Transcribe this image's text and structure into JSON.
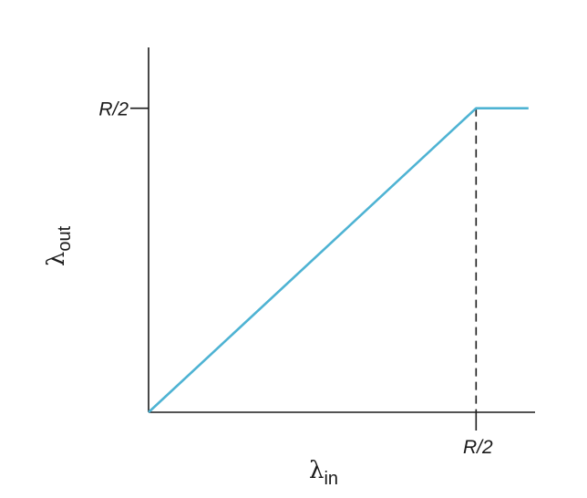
{
  "chart_data": {
    "type": "line",
    "title": "",
    "xlabel": {
      "symbol": "λ",
      "subscript": "in"
    },
    "ylabel": {
      "symbol": "λ",
      "subscript": "out"
    },
    "x_ticks": [
      {
        "value": 0.5,
        "label": "R/2"
      }
    ],
    "y_ticks": [
      {
        "value": 0.5,
        "label": "R/2"
      }
    ],
    "xlim": [
      0,
      0.59
    ],
    "ylim": [
      0,
      0.6
    ],
    "grid": false,
    "legend": "none",
    "reference_lines": [
      {
        "orientation": "vertical",
        "x": 0.5,
        "style": "dashed"
      }
    ],
    "series": [
      {
        "color": "#4eb3d3",
        "x": [
          0,
          0.5,
          0.58
        ],
        "y": [
          0,
          0.5,
          0.5
        ]
      }
    ]
  }
}
